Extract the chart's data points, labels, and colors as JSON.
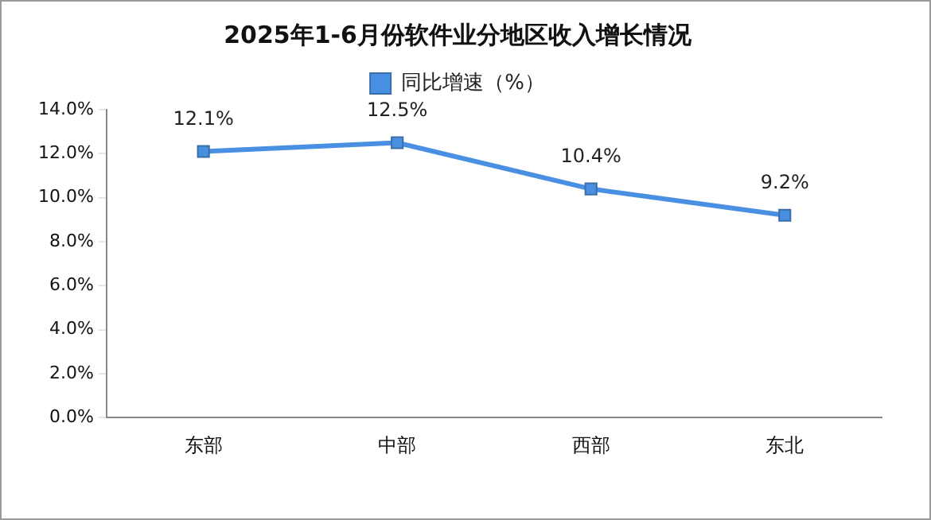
{
  "chart_data": {
    "type": "line",
    "title": "2025年1-6月份软件业分地区收入增长情况",
    "categories": [
      "东部",
      "中部",
      "西部",
      "东北"
    ],
    "series": [
      {
        "name": "同比增速（%）",
        "color": "#4a90e2",
        "values": [
          12.1,
          12.5,
          10.4,
          9.2
        ]
      }
    ],
    "ylim": [
      0,
      14
    ],
    "yticks": [
      {
        "value": 0,
        "label": "0.0%"
      },
      {
        "value": 2,
        "label": "2.0%"
      },
      {
        "value": 4,
        "label": "4.0%"
      },
      {
        "value": 6,
        "label": "6.0%"
      },
      {
        "value": 8,
        "label": "8.0%"
      },
      {
        "value": 10,
        "label": "10.0%"
      },
      {
        "value": 12,
        "label": "12.0%"
      },
      {
        "value": 14,
        "label": "14.0%"
      }
    ],
    "value_labels": [
      "12.1%",
      "12.5%",
      "10.4%",
      "9.2%"
    ],
    "grid": false,
    "legend": "top",
    "marker": "square",
    "line_style": "solid"
  }
}
